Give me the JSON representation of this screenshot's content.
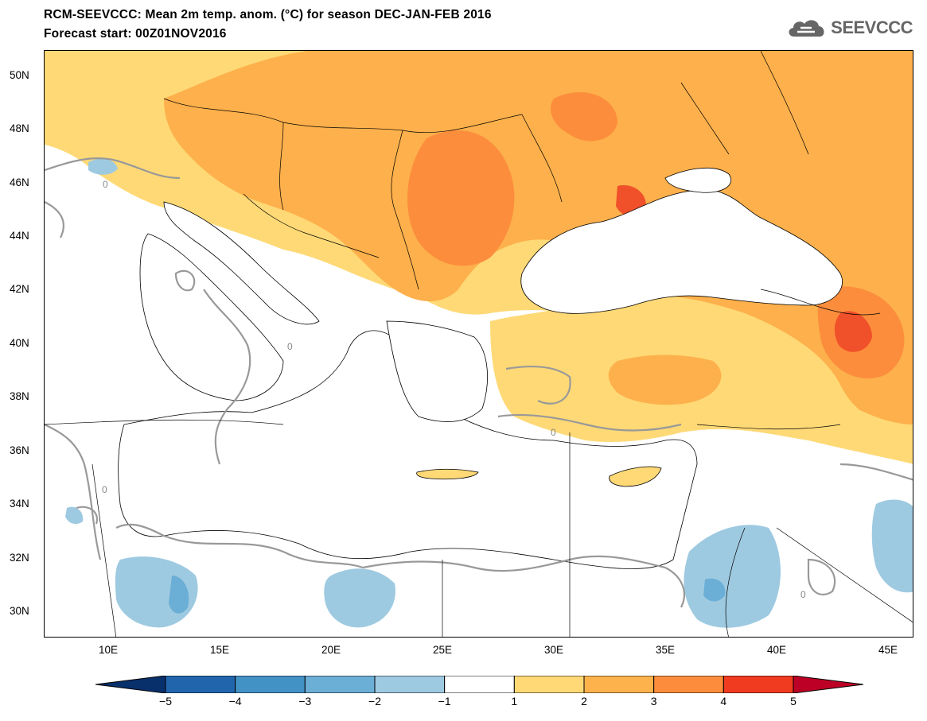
{
  "header": {
    "title": "RCM-SEEVCCC: Mean 2m temp. anom. (°C) for season DEC-JAN-FEB 2016",
    "subtitle": "Forecast start: 00Z01NOV2016"
  },
  "logo": {
    "text": "SEEVCCC",
    "icon": "cloud-icon",
    "color": "#666666"
  },
  "map": {
    "lon_range": [
      7,
      46
    ],
    "lat_range": [
      29,
      51
    ],
    "lat_ticks": [
      "50N",
      "48N",
      "46N",
      "44N",
      "42N",
      "40N",
      "38N",
      "36N",
      "34N",
      "32N",
      "30N"
    ],
    "lon_ticks": [
      "10E",
      "15E",
      "20E",
      "25E",
      "30E",
      "35E",
      "40E",
      "45E"
    ],
    "contour_label": "0"
  },
  "colorbar": {
    "labels": [
      "−5",
      "−4",
      "−3",
      "−2",
      "−1",
      "1",
      "2",
      "3",
      "4",
      "5"
    ],
    "colors": [
      "#08306b",
      "#2166ac",
      "#4292c6",
      "#6baed6",
      "#9ecae1",
      "#ffffff",
      "#fed976",
      "#feb24c",
      "#fd8d3c",
      "#f03b20",
      "#bd0026"
    ]
  },
  "colors": {
    "warm1": "#fed976",
    "warm2": "#fdb04b",
    "warm3": "#fc8d3c",
    "warm4": "#f0502a",
    "warm5": "#d7191c",
    "cool1": "#9ecae1",
    "cool2": "#6baed6"
  }
}
